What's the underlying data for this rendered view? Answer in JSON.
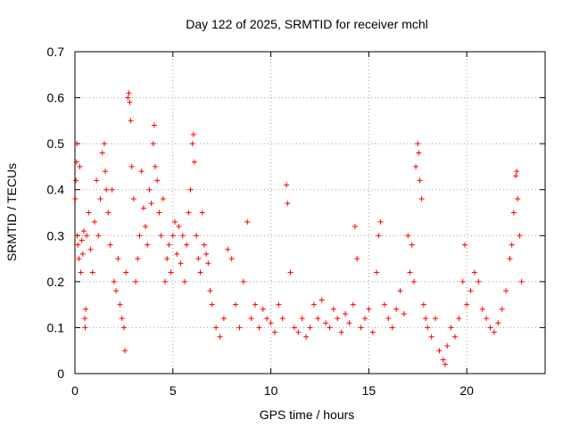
{
  "chart_data": {
    "type": "scatter",
    "title": "Day 122 of 2025, SRMTID for receiver mchl",
    "xlabel": "GPS time / hours",
    "ylabel": "SRMTID / TECUs",
    "xlim": [
      0,
      24
    ],
    "ylim": [
      0,
      0.7
    ],
    "xticks": [
      0,
      5,
      10,
      15,
      20
    ],
    "yticks": [
      0,
      0.1,
      0.2,
      0.3,
      0.4,
      0.5,
      0.6,
      0.7
    ],
    "x_tick_labels": [
      "0",
      "5",
      "10",
      "15",
      "20"
    ],
    "y_tick_labels": [
      "0",
      "0.1",
      "0.2",
      "0.3",
      "0.4",
      "0.5",
      "0.6",
      "0.7"
    ],
    "grid": true,
    "marker": "+",
    "color": "#ff0000",
    "series": [
      {
        "name": "SRMTID",
        "points": [
          [
            0.02,
            0.38
          ],
          [
            0.05,
            0.42
          ],
          [
            0.08,
            0.46
          ],
          [
            0.1,
            0.5
          ],
          [
            0.12,
            0.3
          ],
          [
            0.15,
            0.28
          ],
          [
            0.2,
            0.25
          ],
          [
            0.25,
            0.45
          ],
          [
            0.3,
            0.22
          ],
          [
            0.35,
            0.29
          ],
          [
            0.4,
            0.26
          ],
          [
            0.45,
            0.31
          ],
          [
            0.5,
            0.12
          ],
          [
            0.52,
            0.1
          ],
          [
            0.55,
            0.14
          ],
          [
            0.6,
            0.3
          ],
          [
            0.7,
            0.35
          ],
          [
            0.8,
            0.27
          ],
          [
            0.9,
            0.22
          ],
          [
            1.0,
            0.33
          ],
          [
            1.1,
            0.42
          ],
          [
            1.2,
            0.3
          ],
          [
            1.3,
            0.38
          ],
          [
            1.4,
            0.48
          ],
          [
            1.5,
            0.5
          ],
          [
            1.55,
            0.44
          ],
          [
            1.6,
            0.4
          ],
          [
            1.7,
            0.35
          ],
          [
            1.8,
            0.28
          ],
          [
            1.9,
            0.4
          ],
          [
            2.0,
            0.2
          ],
          [
            2.1,
            0.18
          ],
          [
            2.2,
            0.25
          ],
          [
            2.3,
            0.15
          ],
          [
            2.4,
            0.12
          ],
          [
            2.5,
            0.1
          ],
          [
            2.55,
            0.05
          ],
          [
            2.6,
            0.22
          ],
          [
            2.7,
            0.6
          ],
          [
            2.75,
            0.61
          ],
          [
            2.8,
            0.59
          ],
          [
            2.85,
            0.55
          ],
          [
            2.9,
            0.45
          ],
          [
            3.0,
            0.38
          ],
          [
            3.1,
            0.2
          ],
          [
            3.2,
            0.25
          ],
          [
            3.3,
            0.3
          ],
          [
            3.4,
            0.44
          ],
          [
            3.5,
            0.36
          ],
          [
            3.6,
            0.32
          ],
          [
            3.7,
            0.28
          ],
          [
            3.8,
            0.4
          ],
          [
            3.9,
            0.37
          ],
          [
            4.0,
            0.5
          ],
          [
            4.05,
            0.54
          ],
          [
            4.1,
            0.45
          ],
          [
            4.2,
            0.42
          ],
          [
            4.3,
            0.35
          ],
          [
            4.4,
            0.3
          ],
          [
            4.5,
            0.38
          ],
          [
            4.6,
            0.2
          ],
          [
            4.7,
            0.25
          ],
          [
            4.8,
            0.28
          ],
          [
            4.9,
            0.22
          ],
          [
            5.0,
            0.3
          ],
          [
            5.1,
            0.33
          ],
          [
            5.2,
            0.26
          ],
          [
            5.3,
            0.32
          ],
          [
            5.4,
            0.24
          ],
          [
            5.5,
            0.3
          ],
          [
            5.6,
            0.2
          ],
          [
            5.7,
            0.28
          ],
          [
            5.8,
            0.35
          ],
          [
            5.9,
            0.4
          ],
          [
            6.0,
            0.5
          ],
          [
            6.05,
            0.52
          ],
          [
            6.1,
            0.46
          ],
          [
            6.2,
            0.3
          ],
          [
            6.3,
            0.25
          ],
          [
            6.4,
            0.22
          ],
          [
            6.5,
            0.35
          ],
          [
            6.6,
            0.28
          ],
          [
            6.7,
            0.26
          ],
          [
            6.8,
            0.24
          ],
          [
            6.9,
            0.18
          ],
          [
            7.0,
            0.15
          ],
          [
            7.2,
            0.1
          ],
          [
            7.4,
            0.08
          ],
          [
            7.6,
            0.12
          ],
          [
            7.8,
            0.27
          ],
          [
            8.0,
            0.25
          ],
          [
            8.2,
            0.15
          ],
          [
            8.4,
            0.1
          ],
          [
            8.6,
            0.2
          ],
          [
            8.8,
            0.33
          ],
          [
            9.0,
            0.12
          ],
          [
            9.2,
            0.15
          ],
          [
            9.4,
            0.1
          ],
          [
            9.6,
            0.14
          ],
          [
            9.8,
            0.12
          ],
          [
            10.0,
            0.11
          ],
          [
            10.2,
            0.09
          ],
          [
            10.4,
            0.15
          ],
          [
            10.6,
            0.12
          ],
          [
            10.8,
            0.41
          ],
          [
            10.85,
            0.37
          ],
          [
            11.0,
            0.22
          ],
          [
            11.2,
            0.1
          ],
          [
            11.4,
            0.09
          ],
          [
            11.6,
            0.12
          ],
          [
            11.8,
            0.08
          ],
          [
            12.0,
            0.1
          ],
          [
            12.2,
            0.15
          ],
          [
            12.4,
            0.12
          ],
          [
            12.6,
            0.16
          ],
          [
            12.8,
            0.11
          ],
          [
            13.0,
            0.1
          ],
          [
            13.2,
            0.14
          ],
          [
            13.4,
            0.12
          ],
          [
            13.6,
            0.09
          ],
          [
            13.8,
            0.13
          ],
          [
            14.0,
            0.11
          ],
          [
            14.2,
            0.15
          ],
          [
            14.3,
            0.32
          ],
          [
            14.4,
            0.25
          ],
          [
            14.6,
            0.1
          ],
          [
            14.8,
            0.12
          ],
          [
            15.0,
            0.14
          ],
          [
            15.2,
            0.09
          ],
          [
            15.4,
            0.22
          ],
          [
            15.5,
            0.3
          ],
          [
            15.6,
            0.33
          ],
          [
            15.8,
            0.15
          ],
          [
            16.0,
            0.12
          ],
          [
            16.2,
            0.1
          ],
          [
            16.4,
            0.14
          ],
          [
            16.6,
            0.18
          ],
          [
            16.8,
            0.13
          ],
          [
            17.0,
            0.3
          ],
          [
            17.1,
            0.22
          ],
          [
            17.2,
            0.28
          ],
          [
            17.3,
            0.2
          ],
          [
            17.4,
            0.45
          ],
          [
            17.5,
            0.5
          ],
          [
            17.55,
            0.48
          ],
          [
            17.6,
            0.42
          ],
          [
            17.7,
            0.38
          ],
          [
            17.8,
            0.15
          ],
          [
            17.9,
            0.12
          ],
          [
            18.0,
            0.1
          ],
          [
            18.2,
            0.08
          ],
          [
            18.4,
            0.12
          ],
          [
            18.6,
            0.05
          ],
          [
            18.8,
            0.03
          ],
          [
            18.9,
            0.02
          ],
          [
            19.0,
            0.06
          ],
          [
            19.2,
            0.1
          ],
          [
            19.4,
            0.08
          ],
          [
            19.6,
            0.12
          ],
          [
            19.8,
            0.2
          ],
          [
            19.9,
            0.28
          ],
          [
            20.0,
            0.15
          ],
          [
            20.2,
            0.18
          ],
          [
            20.4,
            0.22
          ],
          [
            20.6,
            0.2
          ],
          [
            20.8,
            0.14
          ],
          [
            21.0,
            0.12
          ],
          [
            21.2,
            0.1
          ],
          [
            21.4,
            0.09
          ],
          [
            21.6,
            0.11
          ],
          [
            21.8,
            0.14
          ],
          [
            22.0,
            0.18
          ],
          [
            22.2,
            0.25
          ],
          [
            22.3,
            0.28
          ],
          [
            22.4,
            0.35
          ],
          [
            22.5,
            0.43
          ],
          [
            22.55,
            0.44
          ],
          [
            22.6,
            0.38
          ],
          [
            22.7,
            0.3
          ],
          [
            22.8,
            0.2
          ]
        ]
      }
    ]
  }
}
